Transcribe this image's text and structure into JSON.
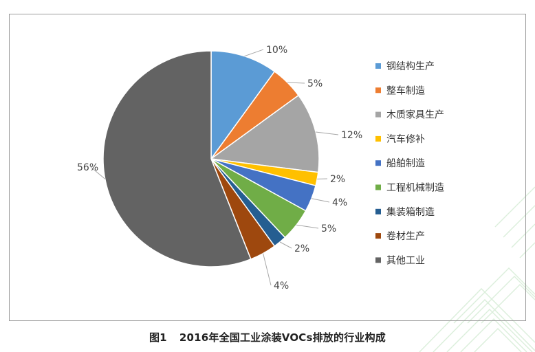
{
  "chart_data": {
    "type": "pie",
    "title": "图1   2016年全国工业涂装VOCs排放的行业构成",
    "legend_position": "right",
    "start_angle": "12 o'clock",
    "direction": "clockwise",
    "slices": [
      {
        "label": "钢结构生产",
        "value": 10,
        "display": "10%",
        "color": "#5b9bd5"
      },
      {
        "label": "整车制造",
        "value": 5,
        "display": "5%",
        "color": "#ed7d31"
      },
      {
        "label": "木质家具生产",
        "value": 12,
        "display": "12%",
        "color": "#a5a5a5"
      },
      {
        "label": "汽车修补",
        "value": 2,
        "display": "2%",
        "color": "#ffc000"
      },
      {
        "label": "船舶制造",
        "value": 4,
        "display": "4%",
        "color": "#4472c4"
      },
      {
        "label": "工程机械制造",
        "value": 5,
        "display": "5%",
        "color": "#70ad47"
      },
      {
        "label": "集装箱制造",
        "value": 2,
        "display": "2%",
        "color": "#255e91"
      },
      {
        "label": "卷材生产",
        "value": 4,
        "display": "4%",
        "color": "#9e480e"
      },
      {
        "label": "其他工业",
        "value": 56,
        "display": "56%",
        "color": "#636363"
      }
    ]
  },
  "caption": {
    "figure_number": "图1",
    "text": "2016年全国工业涂装VOCs排放的行业构成"
  },
  "colors": {
    "frame_border": "#9a9a9a",
    "decoration": "#dff0df"
  }
}
